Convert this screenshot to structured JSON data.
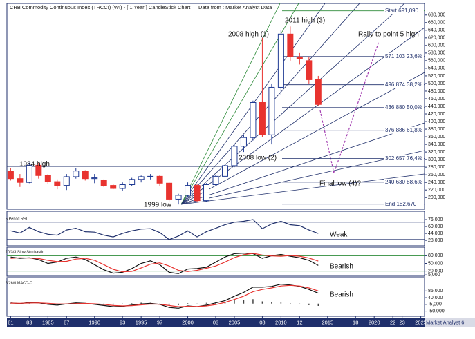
{
  "chart_data": [
    {
      "type": "candlestick",
      "title": "CRB Commodity Continuous Index (TRCCI) (WI) - [ 1 Year ] CandleStick Chart — Data from : Market Analyst Data",
      "x": [
        1981,
        1982,
        1983,
        1984,
        1985,
        1986,
        1987,
        1988,
        1989,
        1990,
        1991,
        1992,
        1993,
        1994,
        1995,
        1996,
        1997,
        1998,
        1999,
        2000,
        2001,
        2002,
        2003,
        2004,
        2005,
        2006,
        2007,
        2008,
        2009,
        2010,
        2011,
        2012,
        2013,
        2014
      ],
      "open": [
        270000,
        250000,
        240000,
        285000,
        258000,
        242000,
        232000,
        255000,
        270000,
        250000,
        245000,
        232000,
        224000,
        234000,
        248000,
        255000,
        256000,
        238000,
        196000,
        206000,
        232000,
        192000,
        234000,
        256000,
        284000,
        335000,
        358000,
        450000,
        365000,
        490000,
        630000,
        570000,
        560000,
        510000
      ],
      "high": [
        278000,
        262000,
        292000,
        292000,
        262000,
        248000,
        262000,
        278000,
        272000,
        262000,
        248000,
        236000,
        240000,
        252000,
        258000,
        262000,
        260000,
        240000,
        210000,
        240000,
        235000,
        238000,
        260000,
        292000,
        340000,
        365000,
        455000,
        620000,
        500000,
        640000,
        650000,
        580000,
        570000,
        520000
      ],
      "low": [
        245000,
        228000,
        238000,
        250000,
        235000,
        222000,
        220000,
        250000,
        245000,
        238000,
        228000,
        222000,
        218000,
        230000,
        240000,
        248000,
        230000,
        190000,
        182000,
        200000,
        188000,
        188000,
        230000,
        250000,
        280000,
        320000,
        350000,
        360000,
        340000,
        470000,
        560000,
        550000,
        500000,
        440000
      ],
      "close": [
        250000,
        240000,
        285000,
        258000,
        242000,
        232000,
        255000,
        270000,
        250000,
        252000,
        232000,
        224000,
        234000,
        248000,
        255000,
        256000,
        238000,
        196000,
        206000,
        232000,
        192000,
        234000,
        256000,
        284000,
        335000,
        358000,
        450000,
        365000,
        490000,
        630000,
        570000,
        565000,
        510000,
        445000
      ],
      "up_color": "#ffffff",
      "down_color": "#e8332f",
      "border_color": "#1f3a93",
      "xlim": [
        1980.6,
        2025.4
      ],
      "xticks": [
        {
          "value": 1981,
          "label": "81"
        },
        {
          "value": 1983,
          "label": "83"
        },
        1985,
        {
          "value": 1987,
          "label": "87"
        },
        1990,
        {
          "value": 1993,
          "label": "93"
        },
        1995,
        {
          "value": 1997,
          "label": "97"
        },
        2000,
        {
          "value": 2003,
          "label": "03"
        },
        2005,
        {
          "value": 2008,
          "label": "08"
        },
        2010,
        {
          "value": 2012,
          "label": "12"
        },
        2015,
        {
          "value": 2018,
          "label": "18"
        },
        2020,
        {
          "value": 2022,
          "label": "22"
        },
        {
          "value": 2023,
          "label": "23"
        },
        2025
      ],
      "ylim": [
        175000,
        705000
      ],
      "yticks": [
        {
          "value": 200000,
          "label": "200,000"
        },
        {
          "value": 220000,
          "label": "220,000"
        },
        {
          "value": 240000,
          "label": "240,000"
        },
        {
          "value": 260000,
          "label": "260,000"
        },
        {
          "value": 280000,
          "label": "280,000"
        },
        {
          "value": 300000,
          "label": "300,000"
        },
        {
          "value": 320000,
          "label": "320,000"
        },
        {
          "value": 340000,
          "label": "340,000"
        },
        {
          "value": 360000,
          "label": "360,000"
        },
        {
          "value": 380000,
          "label": "380,000"
        },
        {
          "value": 400000,
          "label": "400,000"
        },
        {
          "value": 420000,
          "label": "420,000"
        },
        {
          "value": 440000,
          "label": "440,000"
        },
        {
          "value": 460000,
          "label": "460,000"
        },
        {
          "value": 480000,
          "label": "480,000"
        },
        {
          "value": 500000,
          "label": "500,000"
        },
        {
          "value": 520000,
          "label": "520,000"
        },
        {
          "value": 540000,
          "label": "540,000"
        },
        {
          "value": 560000,
          "label": "560,000"
        },
        {
          "value": 580000,
          "label": "580,000"
        },
        {
          "value": 600000,
          "label": "600,000"
        },
        {
          "value": 620000,
          "label": "620,000"
        },
        {
          "value": 640000,
          "label": "640,000"
        },
        {
          "value": 660000,
          "label": "660,000"
        },
        {
          "value": 680000,
          "label": "680,000"
        }
      ],
      "fib_levels": [
        {
          "value": 691090,
          "label": "Start 691,090"
        },
        {
          "value": 571103,
          "label": "571,103 23,6%"
        },
        {
          "value": 496874,
          "label": "496,874 38,2%"
        },
        {
          "value": 436880,
          "label": "436,880 50,0%"
        },
        {
          "value": 376886,
          "label": "376,886 61,8%"
        },
        {
          "value": 302657,
          "label": "302,657 76,4%"
        },
        {
          "value": 240630,
          "label": "240,630 88,6%"
        },
        {
          "value": 182670,
          "label": "End 182,670"
        }
      ],
      "annotations": [
        "1984 high",
        "2008 high (1)",
        "2011 high (3)",
        "Rally to point 5 high",
        "2008 low (2)",
        "Final low (4)?",
        "1999 low"
      ],
      "footer": "Market Analyst 6"
    },
    {
      "type": "line",
      "title": "5 Period RSI",
      "ylim": [
        17000,
        92000
      ],
      "yticks": [
        {
          "value": 76000,
          "label": "76,000"
        },
        {
          "value": 60000,
          "label": "60,000"
        },
        {
          "value": 44000,
          "label": "44,000"
        },
        {
          "value": 28000,
          "label": "28,000"
        }
      ],
      "levels": [
        70000,
        30000
      ],
      "level_color": "#1f2f6b",
      "series": [
        {
          "color": "#1f2f6b",
          "values": [
            50000,
            45000,
            58000,
            48000,
            42000,
            40000,
            52000,
            56000,
            48000,
            47000,
            40000,
            36000,
            44000,
            50000,
            54000,
            55000,
            46000,
            30000,
            38000,
            50000,
            36000,
            48000,
            56000,
            64000,
            70000,
            72000,
            76000,
            55000,
            66000,
            72000,
            64000,
            62000,
            52000,
            44000
          ]
        }
      ],
      "annotations": [
        "Weak"
      ]
    },
    {
      "type": "line",
      "title": "10/3/3 Slow Stochastic",
      "ylim": [
        0,
        108000
      ],
      "yticks": [
        {
          "value": 80000,
          "label": "80,000"
        },
        {
          "value": 50000,
          "label": "50,000"
        },
        {
          "value": 20000,
          "label": "20,000"
        },
        {
          "value": 5000,
          "label": "5,000"
        }
      ],
      "levels": [
        80000,
        20000
      ],
      "level_color": "#2e8b3a",
      "series": [
        {
          "color": "#111111",
          "values": [
            75000,
            70000,
            72000,
            65000,
            50000,
            55000,
            70000,
            75000,
            65000,
            45000,
            25000,
            12000,
            15000,
            30000,
            50000,
            60000,
            45000,
            15000,
            10000,
            28000,
            30000,
            35000,
            55000,
            75000,
            88000,
            90000,
            88000,
            70000,
            80000,
            85000,
            78000,
            72000,
            62000,
            42000
          ]
        },
        {
          "color": "#e8332f",
          "values": [
            70000,
            72000,
            71000,
            69000,
            62000,
            57000,
            58000,
            67000,
            70000,
            62000,
            45000,
            27000,
            17000,
            19000,
            32000,
            47000,
            52000,
            40000,
            23000,
            18000,
            23000,
            31000,
            40000,
            55000,
            73000,
            84000,
            89000,
            83000,
            79000,
            78000,
            81000,
            78000,
            71000,
            59000
          ]
        }
      ],
      "annotations": [
        "Bearish"
      ]
    },
    {
      "type": "line",
      "title": "6/26/6 MACD-C",
      "ylim": [
        -75000,
        165000
      ],
      "yticks": [
        {
          "value": 85000,
          "label": "85,000"
        },
        {
          "value": 40000,
          "label": "40,000"
        },
        {
          "value": -5000,
          "label": "-5,000"
        },
        {
          "value": -50000,
          "label": "-50,000"
        }
      ],
      "series": [
        {
          "color": "#111111",
          "values": [
            5000,
            0,
            8000,
            5000,
            -5000,
            -10000,
            -2000,
            5000,
            2000,
            -5000,
            -12000,
            -20000,
            -18000,
            -10000,
            -2000,
            2000,
            -5000,
            -25000,
            -30000,
            -15000,
            -20000,
            -10000,
            5000,
            20000,
            50000,
            75000,
            110000,
            110000,
            115000,
            130000,
            125000,
            115000,
            95000,
            70000
          ]
        },
        {
          "color": "#e8332f",
          "values": [
            3000,
            2000,
            4000,
            5000,
            2000,
            -2000,
            -2000,
            0,
            1000,
            -1000,
            -5000,
            -12000,
            -15000,
            -13000,
            -8000,
            -3000,
            -4000,
            -12000,
            -20000,
            -18000,
            -19000,
            -15000,
            -6000,
            8000,
            28000,
            50000,
            80000,
            95000,
            105000,
            118000,
            122000,
            118000,
            105000,
            85000
          ]
        }
      ],
      "histogram": {
        "color": "#444444",
        "values": [
          2000,
          -2000,
          4000,
          0,
          -7000,
          -8000,
          0,
          5000,
          1000,
          -4000,
          -7000,
          -8000,
          -3000,
          3000,
          6000,
          5000,
          -1000,
          -13000,
          -10000,
          3000,
          -1000,
          5000,
          11000,
          12000,
          22000,
          25000,
          30000,
          15000,
          10000,
          12000,
          3000,
          -3000,
          -10000,
          -15000
        ]
      },
      "annotations": [
        "Bearish"
      ]
    }
  ]
}
